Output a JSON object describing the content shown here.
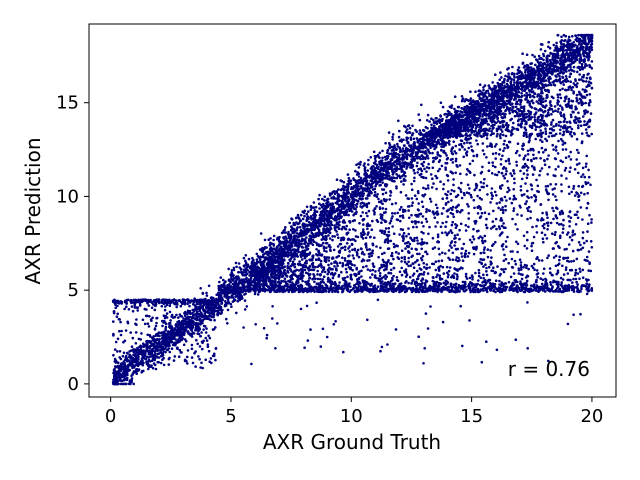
{
  "chart_data": {
    "type": "scatter",
    "title": "",
    "xlabel": "AXR Ground Truth",
    "ylabel": "AXR Prediction",
    "xlim": [
      -0.9,
      21.0
    ],
    "ylim": [
      -0.7,
      19.2
    ],
    "xticks": [
      0,
      5,
      10,
      15,
      20
    ],
    "yticks": [
      0,
      5,
      10,
      15
    ],
    "grid": false,
    "marker_color": "#00007f",
    "annotation": "r = 0.76",
    "series": [
      {
        "description_note": null,
        "values_sampled": [
          [
            0.2,
            0.4
          ],
          [
            0.5,
            0.8
          ],
          [
            1.0,
            1.2
          ],
          [
            1.5,
            1.8
          ],
          [
            2.0,
            2.2
          ],
          [
            2.5,
            2.8
          ],
          [
            3.0,
            3.2
          ],
          [
            3.5,
            3.7
          ],
          [
            4.0,
            4.1
          ],
          [
            4.5,
            4.6
          ],
          [
            5.0,
            5.2
          ],
          [
            5.5,
            5.8
          ],
          [
            6.0,
            6.4
          ],
          [
            6.5,
            7.0
          ],
          [
            7.0,
            7.6
          ],
          [
            7.5,
            8.2
          ],
          [
            8.0,
            8.8
          ],
          [
            8.5,
            9.2
          ],
          [
            9.0,
            9.6
          ],
          [
            9.5,
            10.0
          ],
          [
            10.0,
            10.4
          ],
          [
            10.5,
            10.8
          ],
          [
            11.0,
            11.3
          ],
          [
            11.5,
            11.7
          ],
          [
            12.0,
            12.2
          ],
          [
            12.5,
            12.6
          ],
          [
            13.0,
            13.1
          ],
          [
            13.5,
            13.5
          ],
          [
            14.0,
            14.0
          ],
          [
            14.5,
            14.4
          ],
          [
            15.0,
            14.9
          ],
          [
            15.5,
            15.3
          ],
          [
            16.0,
            15.8
          ],
          [
            16.5,
            16.2
          ],
          [
            17.0,
            16.7
          ],
          [
            17.5,
            17.1
          ],
          [
            18.0,
            17.5
          ],
          [
            18.5,
            17.9
          ],
          [
            19.0,
            18.2
          ],
          [
            19.5,
            18.4
          ],
          [
            0.3,
            4.4
          ],
          [
            1.0,
            4.2
          ],
          [
            2.0,
            4.5
          ],
          [
            3.0,
            4.5
          ],
          [
            6.0,
            4.8
          ],
          [
            8.0,
            4.9
          ],
          [
            10.0,
            5.0
          ],
          [
            12.0,
            4.9
          ],
          [
            14.0,
            5.0
          ],
          [
            16.0,
            5.1
          ],
          [
            18.0,
            5.0
          ],
          [
            19.8,
            4.8
          ],
          [
            7.0,
            6.5
          ],
          [
            9.0,
            7.5
          ],
          [
            11.0,
            6.0
          ],
          [
            12.5,
            9.0
          ],
          [
            14.0,
            8.0
          ],
          [
            15.5,
            10.5
          ],
          [
            17.0,
            9.5
          ],
          [
            18.5,
            12.0
          ],
          [
            19.5,
            14.0
          ],
          [
            16.5,
            13.5
          ],
          [
            13.0,
            11.0
          ],
          [
            10.5,
            8.5
          ],
          [
            19.9,
            9.0
          ],
          [
            19.0,
            3.2
          ],
          [
            13.0,
            1.1
          ],
          [
            11.5,
            2.1
          ],
          [
            9.0,
            2.5
          ],
          [
            6.5,
            2.6
          ]
        ]
      }
    ]
  }
}
